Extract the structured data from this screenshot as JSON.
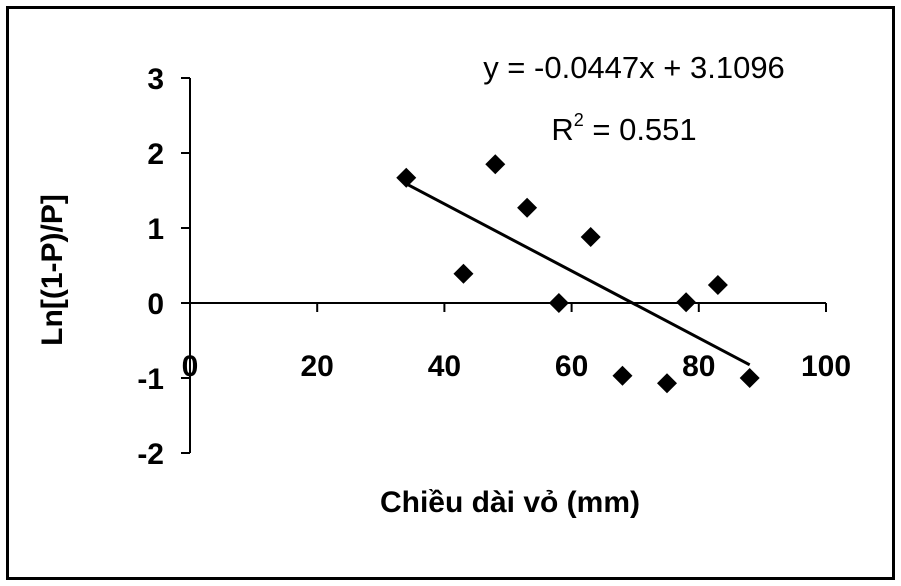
{
  "chart_data": {
    "type": "scatter",
    "xlabel": "Chiều dài vỏ (mm)",
    "ylabel": "Ln[(1-P)/P]",
    "xlim": [
      0,
      100
    ],
    "ylim": [
      -2,
      3
    ],
    "x_ticks": [
      0,
      20,
      40,
      60,
      80,
      100
    ],
    "y_ticks": [
      -2,
      -1,
      0,
      1,
      2,
      3
    ],
    "x_tick_labels": [
      "0",
      "20",
      "40",
      "60",
      "80",
      "100"
    ],
    "y_tick_labels": [
      "-2",
      "-1",
      "0",
      "1",
      "2",
      "3"
    ],
    "points": [
      {
        "x": 34,
        "y": 1.67
      },
      {
        "x": 43,
        "y": 0.39
      },
      {
        "x": 48,
        "y": 1.85
      },
      {
        "x": 53,
        "y": 1.27
      },
      {
        "x": 58,
        "y": 0.0
      },
      {
        "x": 63,
        "y": 0.88
      },
      {
        "x": 68,
        "y": -0.97
      },
      {
        "x": 75,
        "y": -1.07
      },
      {
        "x": 78,
        "y": 0.01
      },
      {
        "x": 83,
        "y": 0.24
      },
      {
        "x": 88,
        "y": -1.0
      }
    ],
    "trendline": {
      "slope": -0.0447,
      "intercept": 3.1096,
      "x_range": [
        34,
        88
      ],
      "equation": "y = -0.0447x + 3.1096",
      "r2_label": "R",
      "r2_exponent": "2",
      "r2_value": " = 0.551"
    },
    "marker_color": "#000000",
    "line_color": "#000000"
  }
}
